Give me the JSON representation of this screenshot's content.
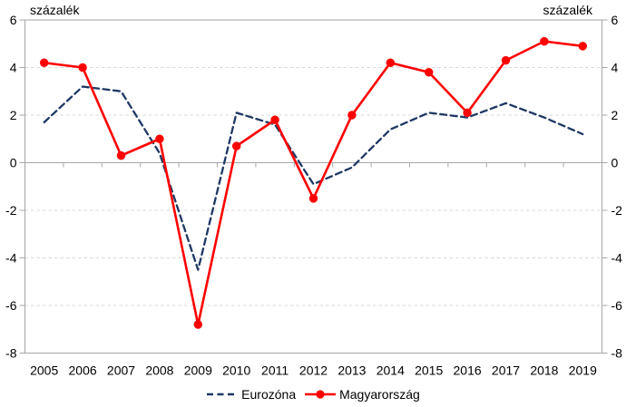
{
  "chart_data": {
    "type": "line",
    "title": "",
    "ylabel_left": "százalék",
    "ylabel_right": "százalék",
    "categories": [
      "2005",
      "2006",
      "2007",
      "2008",
      "2009",
      "2010",
      "2011",
      "2012",
      "2013",
      "2014",
      "2015",
      "2016",
      "2017",
      "2018",
      "2019"
    ],
    "series": [
      {
        "name": "Eurozóna",
        "color": "#1F3864",
        "line_style": "dashed",
        "markers": false,
        "values": [
          1.7,
          3.2,
          3.0,
          0.4,
          -4.5,
          2.1,
          1.6,
          -0.9,
          -0.2,
          1.4,
          2.1,
          1.9,
          2.5,
          1.9,
          1.2
        ]
      },
      {
        "name": "Magyarország",
        "color": "#FF0000",
        "line_style": "solid",
        "markers": true,
        "values": [
          4.2,
          4.0,
          0.3,
          1.0,
          -6.8,
          0.7,
          1.8,
          -1.5,
          2.0,
          4.2,
          3.8,
          2.1,
          4.3,
          5.1,
          4.9
        ]
      }
    ],
    "ylim": [
      -8,
      6
    ],
    "y_ticks": [
      6,
      4,
      2,
      0,
      -2,
      -4,
      -6,
      -8
    ],
    "grid": true,
    "legend_position": "bottom"
  },
  "colors": {
    "background": "#FFFFFF",
    "gridline": "#D9D9D9",
    "axis": "#A6A6A6",
    "text": "#000000"
  }
}
